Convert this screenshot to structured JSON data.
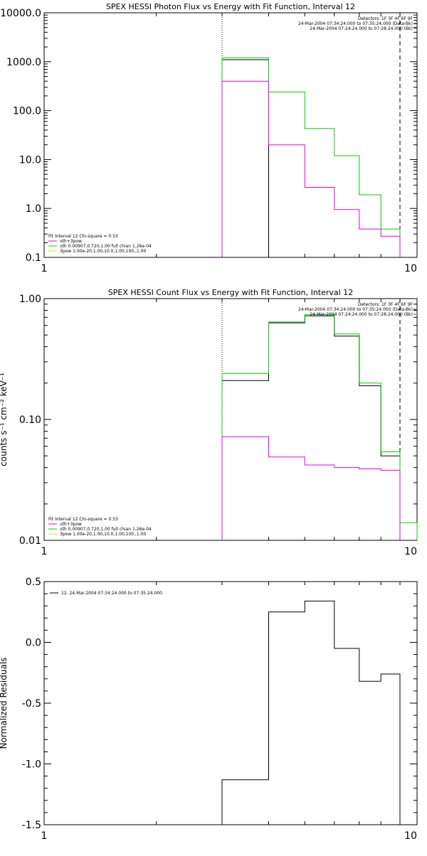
{
  "colors": {
    "background": "#ffffff",
    "axes": "#000000",
    "data": "#000000",
    "total_fit": "#00d000",
    "vth": "#00d000",
    "vth_3pow": "#e000e0",
    "three_pow": "#e0e000"
  },
  "chart_data": [
    {
      "id": "photon",
      "type": "line",
      "title": "SPEX HESSI Photon Flux vs Energy with Fit Function, Interval 12",
      "xlabel": "",
      "ylabel": "",
      "x_scale": "log",
      "y_scale": "log",
      "xlim": [
        1,
        10
      ],
      "ylim": [
        0.1,
        10000
      ],
      "x_ticks": [
        {
          "value": 1,
          "label": "1"
        },
        {
          "value": 10,
          "label": "10"
        }
      ],
      "y_ticks": [
        {
          "value": 0.1,
          "label": "0.1"
        },
        {
          "value": 1,
          "label": "1.0"
        },
        {
          "value": 10,
          "label": "10.0"
        },
        {
          "value": 100,
          "label": "100.0"
        },
        {
          "value": 1000,
          "label": "1000.0"
        },
        {
          "value": 10000,
          "label": "10000.0"
        }
      ],
      "vlines": [
        {
          "x": 3.0,
          "style": "dotted"
        },
        {
          "x": 9.0,
          "style": "dashed"
        }
      ],
      "legend_topright": [
        "Detectors: 1F 3F 4F 6F 9F",
        "24-Mar-2004 07:34:24.000 to 07:35:24.000 (Data-Bk)",
        "24-Mar-2004 07:24:24.000 to 07:28:24.000 (Bk)"
      ],
      "legend_bottomleft": [
        "Fit Interval 12   Chi-square = 0.53",
        "vth+3pow",
        "vth 0.00907,0.720,1.00  full chian 1.26e-04",
        "3pow 1.00e-20,1.00,10.0,1.00,100.,1.00"
      ],
      "series": [
        {
          "name": "",
          "role": "data",
          "edges": [
            3.0,
            4.0
          ],
          "values": [
            1100
          ]
        },
        {
          "name": "",
          "role": "total_fit",
          "edges": [
            3.0,
            4.0,
            5.0,
            6.0,
            7.0,
            8.0,
            9.0
          ],
          "values": [
            1200,
            240,
            43,
            12,
            1.9,
            0.38
          ]
        },
        {
          "name": "",
          "role": "vth_3pow",
          "edges": [
            3.0,
            4.0,
            5.0,
            6.0,
            7.0,
            8.0,
            9.0
          ],
          "values": [
            400,
            20,
            2.7,
            0.95,
            0.38,
            0.27
          ]
        }
      ]
    },
    {
      "id": "count",
      "type": "line",
      "title": "SPEX HESSI Count Flux vs Energy with Fit Function, Interval 12",
      "xlabel": "",
      "ylabel": "counts s⁻¹ cm⁻² keV⁻¹",
      "x_scale": "log",
      "y_scale": "log",
      "xlim": [
        1,
        10
      ],
      "ylim": [
        0.01,
        1.0
      ],
      "x_ticks": [
        {
          "value": 1,
          "label": "1"
        },
        {
          "value": 10,
          "label": "10"
        }
      ],
      "y_ticks": [
        {
          "value": 0.01,
          "label": "0.01"
        },
        {
          "value": 0.1,
          "label": "0.10"
        },
        {
          "value": 1.0,
          "label": "1.00"
        }
      ],
      "vlines": [
        {
          "x": 3.0,
          "style": "dotted"
        },
        {
          "x": 9.0,
          "style": "dashed"
        }
      ],
      "legend_topright": [
        "Detectors: 1F 3F 4F 6F 9F",
        "24-Mar-2004 07:34:24.000 to 07:35:24.000 (Data-Bk)",
        "24-Mar-2004 07:24:24.000 to 07:28:24.000 (Bk)"
      ],
      "legend_bottomleft": [
        "Fit Interval 12   Chi-square = 0.53",
        "vth+3pow",
        "vth 0.00907,0.720,1.00  full chian 1.26e-04",
        "3pow 1.00e-20,1.00,10.0,1.00,100.,1.00"
      ],
      "series": [
        {
          "name": "",
          "role": "data",
          "edges": [
            3.0,
            4.0,
            5.0,
            6.0,
            7.0,
            8.0,
            9.0
          ],
          "values": [
            0.21,
            0.63,
            0.72,
            0.49,
            0.19,
            0.05
          ]
        },
        {
          "name": "",
          "role": "total_fit",
          "edges": [
            3.0,
            4.0,
            5.0,
            6.0,
            7.0,
            8.0,
            9.0,
            10.0
          ],
          "values": [
            0.24,
            0.64,
            0.74,
            0.51,
            0.2,
            0.054,
            0.014
          ]
        },
        {
          "name": "",
          "role": "vth_3pow",
          "edges": [
            3.0,
            4.0,
            5.0,
            6.0,
            7.0,
            8.0,
            9.0
          ],
          "values": [
            0.072,
            0.049,
            0.042,
            0.04,
            0.039,
            0.038
          ]
        }
      ]
    },
    {
      "id": "residuals",
      "type": "line",
      "title": "",
      "xlabel": "",
      "ylabel": "Normalized Residuals",
      "x_scale": "log",
      "y_scale": "linear",
      "xlim": [
        1,
        10
      ],
      "ylim": [
        -1.5,
        0.5
      ],
      "x_ticks": [
        {
          "value": 1,
          "label": "1"
        },
        {
          "value": 10,
          "label": "10"
        }
      ],
      "y_ticks": [
        {
          "value": -1.5,
          "label": "-1.5"
        },
        {
          "value": -1.0,
          "label": "-1.0"
        },
        {
          "value": -0.5,
          "label": "-0.5"
        },
        {
          "value": 0.0,
          "label": "0.0"
        },
        {
          "value": 0.5,
          "label": "0.5"
        }
      ],
      "legend_topleft": [
        "12. 24-Mar-2004 07:34:24.000 to 07:35:24.000"
      ],
      "series": [
        {
          "name": "",
          "role": "data",
          "edges": [
            3.0,
            4.0,
            5.0,
            6.0,
            7.0,
            8.0,
            9.0
          ],
          "values": [
            -1.13,
            0.25,
            0.34,
            -0.05,
            -0.32,
            -0.26
          ]
        }
      ]
    }
  ]
}
